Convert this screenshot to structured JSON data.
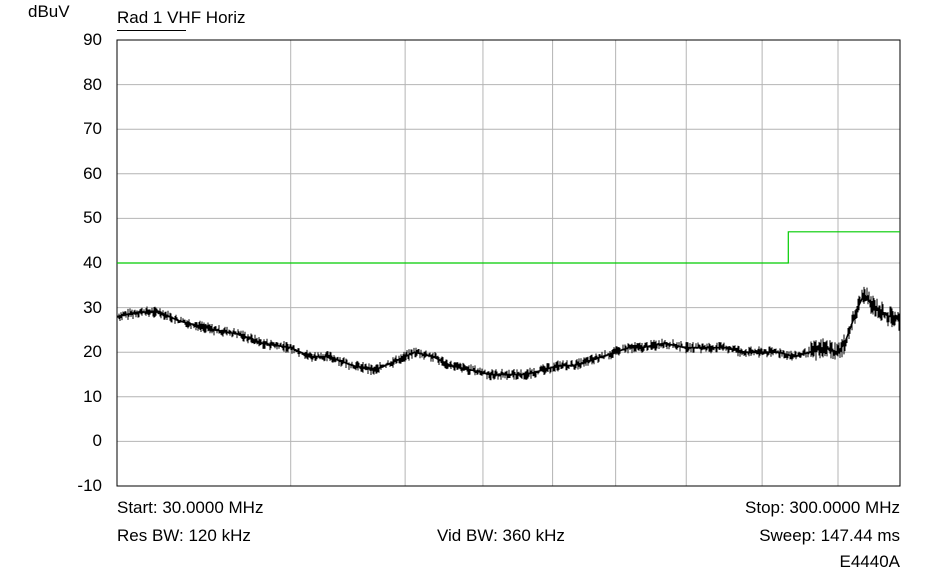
{
  "chart_data": {
    "type": "line",
    "title": "Rad 1 VHF Horiz",
    "ylabel": "dBuV",
    "xlabel": "",
    "xlim": [
      30,
      300
    ],
    "ylim": [
      -10,
      90
    ],
    "x_scale": "log",
    "y_ticks": [
      "90",
      "80",
      "70",
      "60",
      "50",
      "40",
      "30",
      "20",
      "10",
      "0",
      "-10"
    ],
    "x_gridlines": [
      50,
      70,
      88,
      108,
      130,
      160,
      200,
      250
    ],
    "grid": true,
    "series": [
      {
        "color": "#000000",
        "x": [
          30,
          32,
          34,
          36,
          38,
          40,
          43,
          46,
          50,
          53,
          56,
          60,
          64,
          68,
          72,
          76,
          80,
          85,
          90,
          95,
          100,
          105,
          110,
          115,
          120,
          125,
          130,
          135,
          140,
          150,
          160,
          170,
          180,
          190,
          200,
          210,
          220,
          230,
          240,
          250,
          255,
          260,
          265,
          270,
          275,
          280,
          285,
          290,
          295,
          300
        ],
        "y": [
          28,
          29,
          29,
          27,
          26,
          25,
          24,
          22,
          21,
          19,
          19,
          17,
          16,
          18,
          20,
          19,
          17,
          16,
          15,
          15,
          15,
          16,
          17,
          17,
          18,
          19,
          20,
          21,
          21,
          22,
          21,
          21,
          21,
          20,
          20,
          20,
          19,
          20,
          21,
          20,
          22,
          26,
          30,
          33,
          31,
          30,
          29,
          28,
          28,
          27
        ]
      },
      {
        "color": "#00cc00",
        "x": [
          30,
          216,
          216,
          300
        ],
        "y": [
          40,
          40,
          47,
          47
        ]
      }
    ]
  },
  "footer": {
    "start": "Start: 30.0000 MHz",
    "stop": "Stop: 300.0000 MHz",
    "res_bw": "Res BW: 120 kHz",
    "vid_bw": "Vid BW: 360 kHz",
    "sweep": "Sweep: 147.44 ms",
    "model": "E4440A"
  },
  "colors": {
    "limit_line": "#00cc00",
    "trace": "#000000",
    "grid": "#b4b4b4"
  }
}
